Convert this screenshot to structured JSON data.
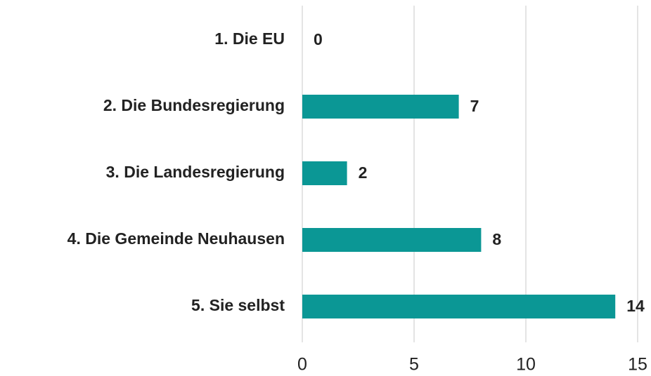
{
  "chart_data": {
    "type": "bar",
    "categories": [
      "1. Die EU",
      "2. Die Bundesregierung",
      "3. Die Landesregierung",
      "4. Die Gemeinde Neuhausen",
      "5. Sie selbst"
    ],
    "values": [
      0,
      7,
      2,
      8,
      14
    ],
    "color": "#0b9795",
    "xlim": [
      0,
      15
    ],
    "xticks": [
      0,
      5,
      10,
      15
    ],
    "grid": true
  }
}
